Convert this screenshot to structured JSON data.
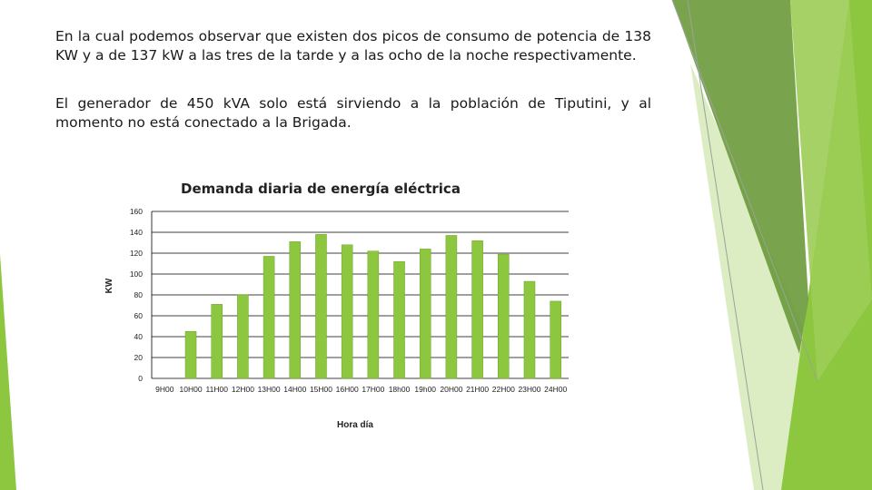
{
  "paragraphs": {
    "p1": "En la cual podemos observar que existen dos picos de consumo de potencia de 138 KW y a de 137 kW a las tres de la tarde y a las ocho de la noche respectivamente.",
    "p2": "El generador de 450 kVA solo está sirviendo a la población de Tiputini, y al momento no está conectado a la Brigada."
  },
  "colors": {
    "bar": "#8dc63f",
    "bar_edge": "#6fa32a",
    "grid": "#000000",
    "deco_dark": "#6a9a3a",
    "deco_mid": "#8dc63f",
    "deco_light": "#d6e9b8"
  },
  "chart_data": {
    "type": "bar",
    "title": "Demanda diaria de energía eléctrica",
    "xlabel": "Hora día",
    "ylabel": "KW",
    "ylim": [
      0,
      160
    ],
    "yticks": [
      0,
      20,
      40,
      60,
      80,
      100,
      120,
      140,
      160
    ],
    "grid": true,
    "categories": [
      "9H00",
      "10H00",
      "11H00",
      "12H00",
      "13H00",
      "14H00",
      "15H00",
      "16H00",
      "17H00",
      "18h00",
      "19h00",
      "20H00",
      "21H00",
      "22H00",
      "23H00",
      "24H00"
    ],
    "values": [
      0,
      45,
      71,
      80,
      117,
      131,
      138,
      128,
      122,
      112,
      124,
      137,
      132,
      119,
      93,
      74
    ]
  }
}
